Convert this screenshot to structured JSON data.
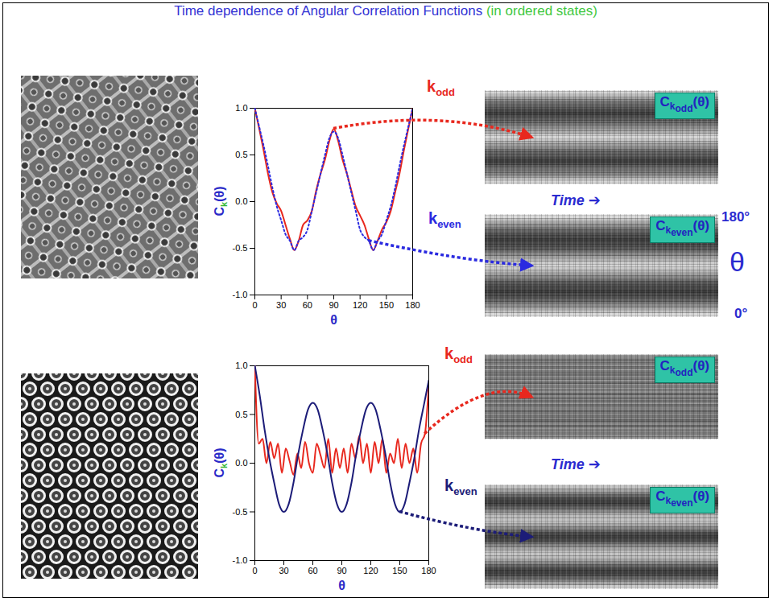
{
  "title": "Time dependence of Angular Correlation Functions",
  "subtitle": "(in ordered states)",
  "time_label": "Time ➔",
  "theta_axis": {
    "top": "180°",
    "label": "θ",
    "bottom": "0°"
  },
  "image_labels": [
    {
      "base": "C",
      "sub": "k",
      "subsub": "odd",
      "after": "(θ)"
    },
    {
      "base": "C",
      "sub": "k",
      "subsub": "even",
      "after": "(θ)"
    }
  ],
  "chart_data": [
    {
      "type": "line",
      "xlabel": "θ",
      "ylabel": {
        "base": "C",
        "sub": "k",
        "after": "(θ)"
      },
      "xlim": [
        0,
        180
      ],
      "ylim": [
        -1,
        1
      ],
      "xticks": [
        0,
        30,
        60,
        90,
        120,
        150,
        180
      ],
      "yticks": [
        {
          "value": -1,
          "label": "-1.0"
        },
        {
          "value": -0.5,
          "label": "-0.5"
        },
        {
          "value": 0,
          "label": "0.0"
        },
        {
          "value": 0.5,
          "label": "0.5"
        },
        {
          "value": 1,
          "label": "1.0"
        }
      ],
      "series": [
        {
          "name": "kodd",
          "color": "#e8281e",
          "line_style": "solid",
          "x": [
            0,
            5,
            10,
            15,
            20,
            25,
            30,
            35,
            40,
            45,
            50,
            55,
            60,
            65,
            70,
            75,
            80,
            85,
            90,
            95,
            100,
            105,
            110,
            115,
            120,
            125,
            130,
            135,
            140,
            145,
            150,
            155,
            160,
            165,
            170,
            175,
            180
          ],
          "values": [
            1.0,
            0.78,
            0.55,
            0.3,
            0.1,
            -0.02,
            -0.1,
            -0.25,
            -0.4,
            -0.52,
            -0.42,
            -0.25,
            -0.2,
            -0.1,
            0.12,
            0.3,
            0.45,
            0.65,
            0.78,
            0.65,
            0.45,
            0.3,
            0.12,
            -0.05,
            -0.15,
            -0.25,
            -0.4,
            -0.52,
            -0.42,
            -0.3,
            -0.22,
            -0.1,
            0.1,
            0.3,
            0.55,
            0.78,
            1.0
          ]
        },
        {
          "name": "keven",
          "color": "#2a2ae0",
          "line_style": "dotted",
          "x": [
            0,
            5,
            10,
            15,
            20,
            25,
            30,
            35,
            40,
            45,
            50,
            55,
            60,
            65,
            70,
            75,
            80,
            85,
            90,
            95,
            100,
            105,
            110,
            115,
            120,
            125,
            130,
            135,
            140,
            145,
            150,
            155,
            160,
            165,
            170,
            175,
            180
          ],
          "values": [
            1.0,
            0.8,
            0.6,
            0.38,
            0.15,
            -0.05,
            -0.2,
            -0.35,
            -0.42,
            -0.52,
            -0.42,
            -0.38,
            -0.3,
            -0.1,
            0.1,
            0.3,
            0.5,
            0.68,
            0.75,
            0.68,
            0.5,
            0.3,
            0.1,
            -0.1,
            -0.3,
            -0.38,
            -0.42,
            -0.52,
            -0.42,
            -0.35,
            -0.2,
            -0.05,
            0.15,
            0.38,
            0.6,
            0.8,
            1.0
          ]
        }
      ]
    },
    {
      "type": "line",
      "xlabel": "θ",
      "ylabel": {
        "base": "C",
        "sub": "k",
        "after": "(θ)"
      },
      "xlim": [
        0,
        180
      ],
      "ylim": [
        -1,
        1
      ],
      "xticks": [
        0,
        30,
        60,
        90,
        120,
        150,
        180
      ],
      "yticks": [
        {
          "value": -1,
          "label": "-1.0"
        },
        {
          "value": -0.5,
          "label": "-0.5"
        },
        {
          "value": 0,
          "label": "0.0"
        },
        {
          "value": 0.5,
          "label": "0.5"
        },
        {
          "value": 1,
          "label": "1.0"
        }
      ],
      "series": [
        {
          "name": "kodd",
          "color": "#e8281e",
          "line_style": "solid",
          "x": [
            0,
            4,
            8,
            12,
            16,
            20,
            24,
            28,
            32,
            36,
            40,
            44,
            48,
            52,
            56,
            60,
            64,
            68,
            72,
            76,
            80,
            84,
            88,
            92,
            96,
            100,
            104,
            108,
            112,
            116,
            120,
            124,
            128,
            132,
            136,
            140,
            144,
            148,
            152,
            156,
            160,
            164,
            168,
            172,
            176,
            180
          ],
          "values": [
            1.0,
            0.2,
            0.25,
            0.0,
            0.22,
            0.05,
            0.2,
            -0.1,
            0.15,
            0.02,
            -0.12,
            0.1,
            -0.05,
            0.22,
            0.0,
            -0.1,
            0.2,
            0.08,
            -0.05,
            0.25,
            -0.1,
            0.15,
            -0.05,
            0.15,
            -0.1,
            0.2,
            0.05,
            0.28,
            0.0,
            0.2,
            -0.1,
            0.22,
            0.0,
            0.25,
            -0.1,
            0.1,
            0.0,
            0.25,
            -0.05,
            0.2,
            0.0,
            0.15,
            -0.1,
            0.2,
            0.3,
            0.8
          ]
        },
        {
          "name": "keven",
          "color": "#1c1c78",
          "line_style": "solid",
          "x": [
            0,
            5,
            10,
            15,
            20,
            25,
            30,
            35,
            40,
            45,
            50,
            55,
            60,
            65,
            70,
            75,
            80,
            85,
            90,
            95,
            100,
            105,
            110,
            115,
            120,
            125,
            130,
            135,
            140,
            145,
            150,
            155,
            160,
            165,
            170,
            175,
            180
          ],
          "values": [
            1.0,
            0.7,
            0.35,
            0.05,
            -0.2,
            -0.42,
            -0.5,
            -0.42,
            -0.2,
            0.1,
            0.35,
            0.55,
            0.62,
            0.55,
            0.35,
            0.1,
            -0.2,
            -0.42,
            -0.5,
            -0.42,
            -0.2,
            0.1,
            0.35,
            0.55,
            0.62,
            0.55,
            0.35,
            0.1,
            -0.2,
            -0.42,
            -0.5,
            -0.42,
            -0.2,
            0.05,
            0.35,
            0.6,
            0.85
          ]
        }
      ]
    }
  ]
}
